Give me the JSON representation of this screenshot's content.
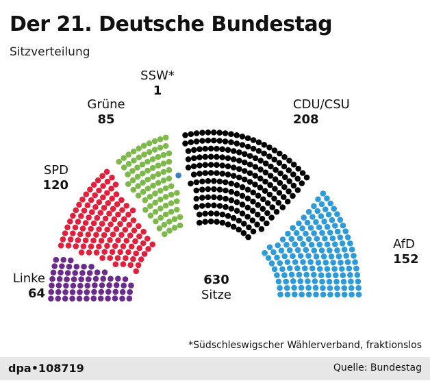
{
  "title": "Der 21. Deutsche Bundestag",
  "subtitle": "Sitzverteilung",
  "chart_data": {
    "type": "parliament",
    "total": {
      "value": "630",
      "label": "Sitze"
    },
    "parties": [
      {
        "name": "Linke",
        "seats": 64,
        "color": "#6b2b8c"
      },
      {
        "name": "SPD",
        "seats": 120,
        "color": "#e2203c"
      },
      {
        "name": "Grüne",
        "seats": 85,
        "color": "#7cb94a"
      },
      {
        "name": "SSW*",
        "seats": 1,
        "color": "#3d7fc6"
      },
      {
        "name": "CDU/CSU",
        "seats": 208,
        "color": "#000000"
      },
      {
        "name": "AfD",
        "seats": 152,
        "color": "#2d9bd9"
      }
    ]
  },
  "footnote": "*Südschleswigscher Wählerverband, fraktionslos",
  "footer": {
    "id": "dpa•108719",
    "source": "Quelle: Bundestag"
  }
}
